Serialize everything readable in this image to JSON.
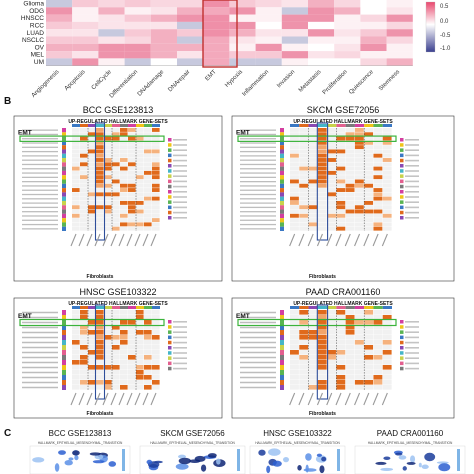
{
  "panelA": {
    "rows": [
      "Glioma",
      "ODG",
      "HNSCC",
      "RCC",
      "LUAD",
      "NSCLC",
      "OV",
      "MEL",
      "UM"
    ],
    "columns": [
      "Angiogenesis",
      "Apoptosis",
      "CellCycle",
      "Differentiation",
      "DNAdamage",
      "DNArepair",
      "EMT",
      "Hypoxia",
      "Inflammation",
      "Invasion",
      "Metastasis",
      "Proliferation",
      "Quiescence",
      "Stemness"
    ],
    "scale_ticks": [
      "0.5",
      "0.0",
      "-0.5",
      "-1.0"
    ],
    "highlight_column": "EMT",
    "colors": {
      "high": "#e8486e",
      "low": "#3a3f8f",
      "mid": "#ffffff",
      "highlight": "#c0302e"
    }
  },
  "panelB": {
    "label": "B",
    "subtitle": "UP-REGULATED HALLMARK GENE-SETS",
    "pathway_label": "EMT",
    "cell_label": "Fibroblasts",
    "datasets": [
      "BCC GSE123813",
      "SKCM GSE72056",
      "HNSC GSE103322",
      "PAAD CRA001160"
    ],
    "colors": {
      "cell": "#e06a1c",
      "highlight_box": "#3bb33b",
      "fibro_box": "#2e4e9a"
    }
  },
  "panelC": {
    "label": "C",
    "datasets": [
      "BCC GSE123813",
      "SKCM GSE72056",
      "HNSC GSE103322",
      "PAAD CRA001160"
    ],
    "gene_set": "HALLMARK_EPITHELIAL_MESENCHYMAL_TRANSITION"
  }
}
